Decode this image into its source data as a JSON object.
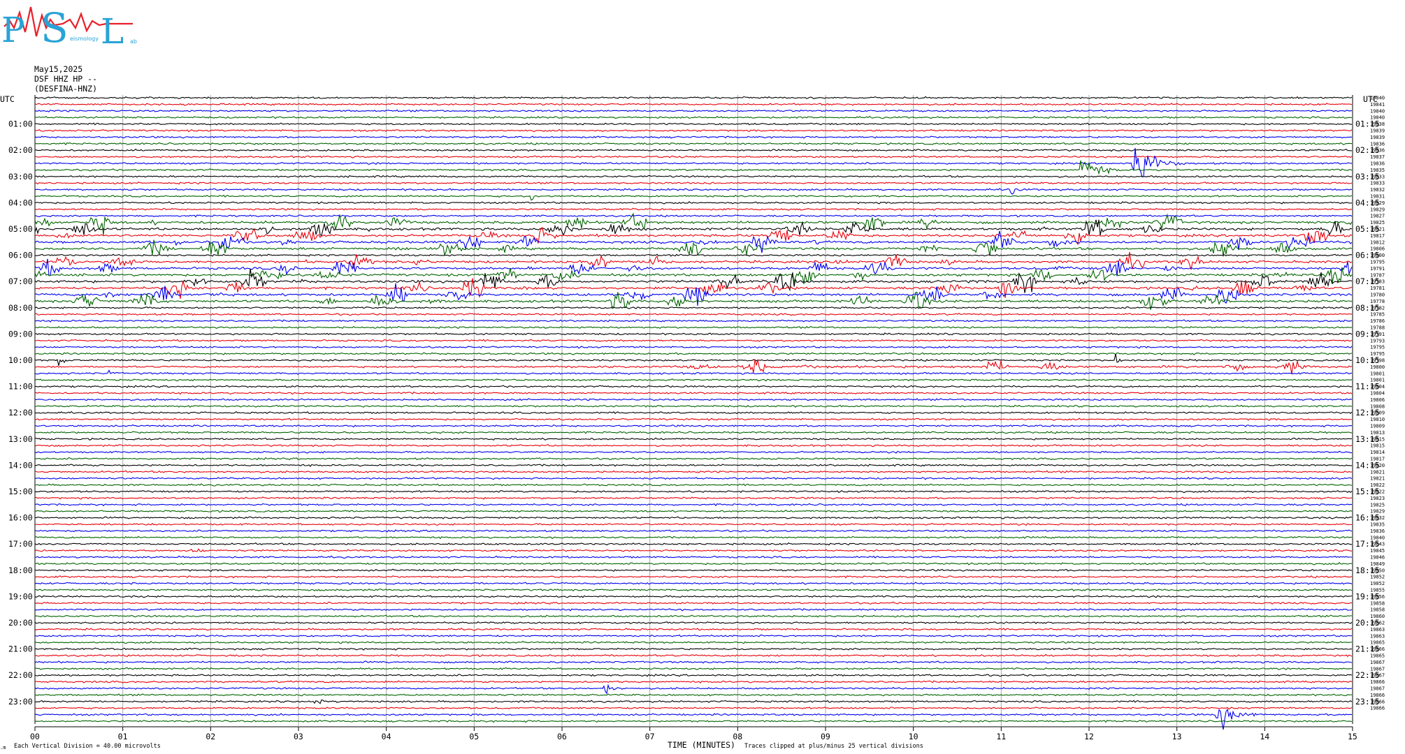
{
  "logo": {
    "letters": [
      "P",
      "S",
      "L"
    ],
    "small_text": [
      "eismology",
      "ab"
    ],
    "colors": {
      "letters": "#29a3d6",
      "wave": "#e8202a"
    }
  },
  "header": {
    "date": "May15,2025",
    "station": "DSF HHZ HP --",
    "network": "(DESFINA-HNZ)"
  },
  "chart_data": {
    "type": "line",
    "left_label": "UTC",
    "right_label": "UTC",
    "xlabel": "TIME (MINUTES)",
    "x_ticks": [
      "00",
      "01",
      "02",
      "03",
      "04",
      "05",
      "06",
      "07",
      "08",
      "09",
      "10",
      "11",
      "12",
      "13",
      "14",
      "15"
    ],
    "xlim": [
      0,
      15
    ],
    "left_hours": [
      "01:00",
      "02:00",
      "03:00",
      "04:00",
      "05:00",
      "06:00",
      "07:00",
      "08:00",
      "09:00",
      "10:00",
      "11:00",
      "12:00",
      "13:00",
      "14:00",
      "15:00",
      "16:00",
      "17:00",
      "18:00",
      "19:00",
      "20:00",
      "21:00",
      "22:00",
      "23:00"
    ],
    "right_hours": [
      "01:15",
      "02:15",
      "03:15",
      "04:15",
      "05:15",
      "06:15",
      "07:15",
      "08:15",
      "09:15",
      "10:15",
      "11:15",
      "12:15",
      "13:15",
      "14:15",
      "15:15",
      "16:15",
      "17:15",
      "18:15",
      "19:15",
      "20:15",
      "21:15",
      "22:15",
      "23:15"
    ],
    "trace_count": 96,
    "trace_colors": [
      "#000000",
      "#e8000b",
      "#0000ee",
      "#006400"
    ],
    "grid": true,
    "right_values": [
      "19840",
      "19841",
      "19840",
      "19840",
      "19838",
      "19839",
      "19839",
      "19836",
      "19836",
      "19837",
      "19836",
      "19835",
      "19833",
      "19833",
      "19832",
      "19831",
      "19829",
      "19829",
      "19827",
      "19825",
      "19821",
      "19817",
      "19812",
      "19806",
      "19800",
      "19795",
      "19791",
      "19787",
      "19783",
      "19781",
      "19780",
      "19778",
      "19782",
      "19785",
      "19786",
      "19788",
      "19791",
      "19793",
      "19795",
      "19795",
      "19798",
      "19800",
      "19801",
      "19801",
      "19804",
      "19804",
      "19806",
      "19808",
      "19809",
      "19810",
      "19809",
      "19813",
      "19815",
      "19815",
      "19814",
      "19817",
      "19820",
      "19821",
      "19821",
      "19822",
      "19822",
      "19823",
      "19825",
      "19829",
      "19832",
      "19835",
      "19836",
      "19840",
      "19843",
      "19845",
      "19846",
      "19849",
      "19850",
      "19852",
      "19852",
      "19855",
      "19856",
      "19858",
      "19858",
      "19860",
      "19862",
      "19863",
      "19863",
      "19865",
      "19866",
      "19865",
      "19867",
      "19867",
      "19867",
      "19866",
      "19867",
      "19866",
      "19866",
      "19866"
    ],
    "footer_left": "Each Vertical Division =   40.00 microvolts",
    "footer_right": "Traces clipped at plus/minus 25 vertical divisions",
    "corner_mark": ".m",
    "events": [
      {
        "trace": 10,
        "minute": 12.55,
        "amp": 34,
        "dur": 0.45
      },
      {
        "trace": 11,
        "minute": 11.95,
        "amp": 22,
        "dur": 0.35
      },
      {
        "trace": 14,
        "minute": 11.1,
        "amp": 6,
        "dur": 0.2
      },
      {
        "trace": 15,
        "minute": 5.65,
        "amp": 8,
        "dur": 0.08
      },
      {
        "trace": 94,
        "minute": 13.5,
        "amp": 20,
        "dur": 0.4
      },
      {
        "trace": 90,
        "minute": 6.5,
        "amp": 7,
        "dur": 0.2
      },
      {
        "trace": 92,
        "minute": 3.2,
        "amp": 5,
        "dur": 0.2
      },
      {
        "trace": 97,
        "minute": 8.6,
        "amp": 7,
        "dur": 0.15
      },
      {
        "trace": 40,
        "minute": 0.28,
        "amp": 10,
        "dur": 0.12
      },
      {
        "trace": 42,
        "minute": 0.85,
        "amp": 5,
        "dur": 0.08
      },
      {
        "trace": 40,
        "minute": 12.3,
        "amp": 9,
        "dur": 0.1
      },
      {
        "trace": 69,
        "minute": 1.8,
        "amp": 4,
        "dur": 0.2
      }
    ],
    "noisy_bands": [
      {
        "from": 19,
        "to": 23,
        "amp": 13
      },
      {
        "from": 25,
        "to": 27,
        "amp": 11
      },
      {
        "from": 28,
        "to": 31,
        "amp": 14
      },
      {
        "from": 41,
        "to": 41,
        "amp": 9,
        "start": 5.9
      }
    ]
  }
}
